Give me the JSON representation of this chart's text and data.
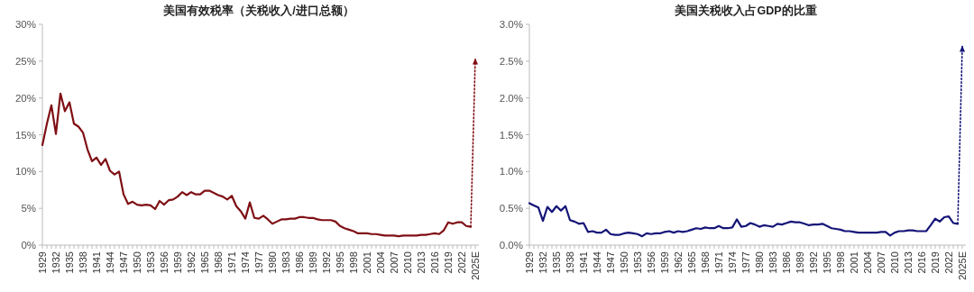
{
  "chart_data": [
    {
      "type": "line",
      "title": "美国有效税率（关税收入/进口总额）",
      "categories": [
        "1929",
        null,
        null,
        "1932",
        null,
        null,
        "1935",
        null,
        null,
        "1938",
        null,
        null,
        "1941",
        null,
        null,
        "1944",
        null,
        null,
        "1947",
        null,
        null,
        "1950",
        null,
        null,
        "1953",
        null,
        null,
        "1956",
        null,
        null,
        "1959",
        null,
        null,
        "1962",
        null,
        null,
        "1965",
        null,
        null,
        "1968",
        null,
        null,
        "1971",
        null,
        null,
        "1974",
        null,
        null,
        "1977",
        null,
        null,
        "1980",
        null,
        null,
        "1983",
        null,
        null,
        "1986",
        null,
        null,
        "1989",
        null,
        null,
        "1992",
        null,
        null,
        "1995",
        null,
        null,
        "1998",
        null,
        null,
        "2001",
        null,
        null,
        "2004",
        null,
        null,
        "2007",
        null,
        null,
        "2010",
        null,
        null,
        "2013",
        null,
        null,
        "2016",
        null,
        null,
        "2019",
        null,
        null,
        "2022",
        null,
        null,
        "2025E"
      ],
      "ylim": [
        0,
        30
      ],
      "yticks": [
        {
          "value": 0,
          "label": "0%"
        },
        {
          "value": 5,
          "label": "5%"
        },
        {
          "value": 10,
          "label": "10%"
        },
        {
          "value": 15,
          "label": "15%"
        },
        {
          "value": 20,
          "label": "20%"
        },
        {
          "value": 25,
          "label": "25%"
        },
        {
          "value": 30,
          "label": "30%"
        }
      ],
      "grid": false,
      "series": [
        {
          "color": "#7f0f14",
          "line_style": "solid",
          "values": [
            13.6,
            16.5,
            19.0,
            15.1,
            20.6,
            18.2,
            19.4,
            16.5,
            16.1,
            15.3,
            13.0,
            11.4,
            11.9,
            10.9,
            11.7,
            10.1,
            9.6,
            10.0,
            6.9,
            5.6,
            5.9,
            5.5,
            5.4,
            5.5,
            5.4,
            4.9,
            6.0,
            5.5,
            6.1,
            6.2,
            6.6,
            7.2,
            6.8,
            7.2,
            6.9,
            6.9,
            7.4,
            7.4,
            7.1,
            6.8,
            6.6,
            6.2,
            6.7,
            5.3,
            4.6,
            3.6,
            5.8,
            3.7,
            3.6,
            4.0,
            3.5,
            2.9,
            3.2,
            3.5,
            3.5,
            3.6,
            3.6,
            3.8,
            3.8,
            3.7,
            3.7,
            3.5,
            3.4,
            3.4,
            3.4,
            3.2,
            2.6,
            2.3,
            2.1,
            1.9,
            1.6,
            1.6,
            1.6,
            1.5,
            1.5,
            1.4,
            1.3,
            1.3,
            1.3,
            1.2,
            1.3,
            1.3,
            1.3,
            1.3,
            1.4,
            1.4,
            1.5,
            1.6,
            1.5,
            2.0,
            3.1,
            2.9,
            3.1,
            3.1,
            2.6,
            2.5,
            null
          ]
        },
        {
          "color": "#7f0f14",
          "line_style": "dotted",
          "values": [
            null,
            null,
            null,
            null,
            null,
            null,
            null,
            null,
            null,
            null,
            null,
            null,
            null,
            null,
            null,
            null,
            null,
            null,
            null,
            null,
            null,
            null,
            null,
            null,
            null,
            null,
            null,
            null,
            null,
            null,
            null,
            null,
            null,
            null,
            null,
            null,
            null,
            null,
            null,
            null,
            null,
            null,
            null,
            null,
            null,
            null,
            null,
            null,
            null,
            null,
            null,
            null,
            null,
            null,
            null,
            null,
            null,
            null,
            null,
            null,
            null,
            null,
            null,
            null,
            null,
            null,
            null,
            null,
            null,
            null,
            null,
            null,
            null,
            null,
            null,
            null,
            null,
            null,
            null,
            null,
            null,
            null,
            null,
            null,
            null,
            null,
            null,
            null,
            null,
            null,
            null,
            null,
            null,
            null,
            null,
            2.5,
            25.3
          ]
        }
      ]
    },
    {
      "type": "line",
      "title": "美国关税收入占GDP的比重",
      "categories": [
        "1929",
        null,
        null,
        "1932",
        null,
        null,
        "1935",
        null,
        null,
        "1938",
        null,
        null,
        "1941",
        null,
        null,
        "1944",
        null,
        null,
        "1947",
        null,
        null,
        "1950",
        null,
        null,
        "1953",
        null,
        null,
        "1956",
        null,
        null,
        "1959",
        null,
        null,
        "1962",
        null,
        null,
        "1965",
        null,
        null,
        "1968",
        null,
        null,
        "1971",
        null,
        null,
        "1974",
        null,
        null,
        "1977",
        null,
        null,
        "1980",
        null,
        null,
        "1983",
        null,
        null,
        "1986",
        null,
        null,
        "1989",
        null,
        null,
        "1992",
        null,
        null,
        "1995",
        null,
        null,
        "1998",
        null,
        null,
        "2001",
        null,
        null,
        "2004",
        null,
        null,
        "2007",
        null,
        null,
        "2010",
        null,
        null,
        "2013",
        null,
        null,
        "2016",
        null,
        null,
        "2019",
        null,
        null,
        "2022",
        null,
        null,
        "2025E"
      ],
      "ylim": [
        0,
        3
      ],
      "yticks": [
        {
          "value": 0,
          "label": "0.0%"
        },
        {
          "value": 0.5,
          "label": "0.5%"
        },
        {
          "value": 1,
          "label": "1.0%"
        },
        {
          "value": 1.5,
          "label": "1.5%"
        },
        {
          "value": 2,
          "label": "2.0%"
        },
        {
          "value": 2.5,
          "label": "2.5%"
        },
        {
          "value": 3,
          "label": "3.0%"
        }
      ],
      "grid": false,
      "series": [
        {
          "color": "#141478",
          "line_style": "solid",
          "values": [
            0.57,
            0.54,
            0.51,
            0.33,
            0.52,
            0.45,
            0.53,
            0.47,
            0.53,
            0.34,
            0.32,
            0.29,
            0.3,
            0.18,
            0.19,
            0.17,
            0.17,
            0.21,
            0.15,
            0.14,
            0.14,
            0.16,
            0.17,
            0.16,
            0.15,
            0.12,
            0.16,
            0.15,
            0.16,
            0.16,
            0.18,
            0.19,
            0.17,
            0.19,
            0.18,
            0.19,
            0.21,
            0.23,
            0.22,
            0.24,
            0.23,
            0.23,
            0.26,
            0.23,
            0.23,
            0.24,
            0.35,
            0.25,
            0.26,
            0.3,
            0.28,
            0.25,
            0.27,
            0.26,
            0.25,
            0.29,
            0.28,
            0.3,
            0.32,
            0.31,
            0.31,
            0.29,
            0.27,
            0.28,
            0.28,
            0.29,
            0.26,
            0.23,
            0.22,
            0.21,
            0.19,
            0.19,
            0.18,
            0.17,
            0.17,
            0.17,
            0.17,
            0.17,
            0.18,
            0.18,
            0.13,
            0.17,
            0.19,
            0.19,
            0.2,
            0.2,
            0.19,
            0.19,
            0.19,
            0.27,
            0.36,
            0.32,
            0.38,
            0.39,
            0.3,
            0.29,
            null
          ]
        },
        {
          "color": "#141478",
          "line_style": "dotted",
          "values": [
            null,
            null,
            null,
            null,
            null,
            null,
            null,
            null,
            null,
            null,
            null,
            null,
            null,
            null,
            null,
            null,
            null,
            null,
            null,
            null,
            null,
            null,
            null,
            null,
            null,
            null,
            null,
            null,
            null,
            null,
            null,
            null,
            null,
            null,
            null,
            null,
            null,
            null,
            null,
            null,
            null,
            null,
            null,
            null,
            null,
            null,
            null,
            null,
            null,
            null,
            null,
            null,
            null,
            null,
            null,
            null,
            null,
            null,
            null,
            null,
            null,
            null,
            null,
            null,
            null,
            null,
            null,
            null,
            null,
            null,
            null,
            null,
            null,
            null,
            null,
            null,
            null,
            null,
            null,
            null,
            null,
            null,
            null,
            null,
            null,
            null,
            null,
            null,
            null,
            null,
            null,
            null,
            null,
            null,
            null,
            0.29,
            2.7
          ]
        }
      ]
    }
  ]
}
